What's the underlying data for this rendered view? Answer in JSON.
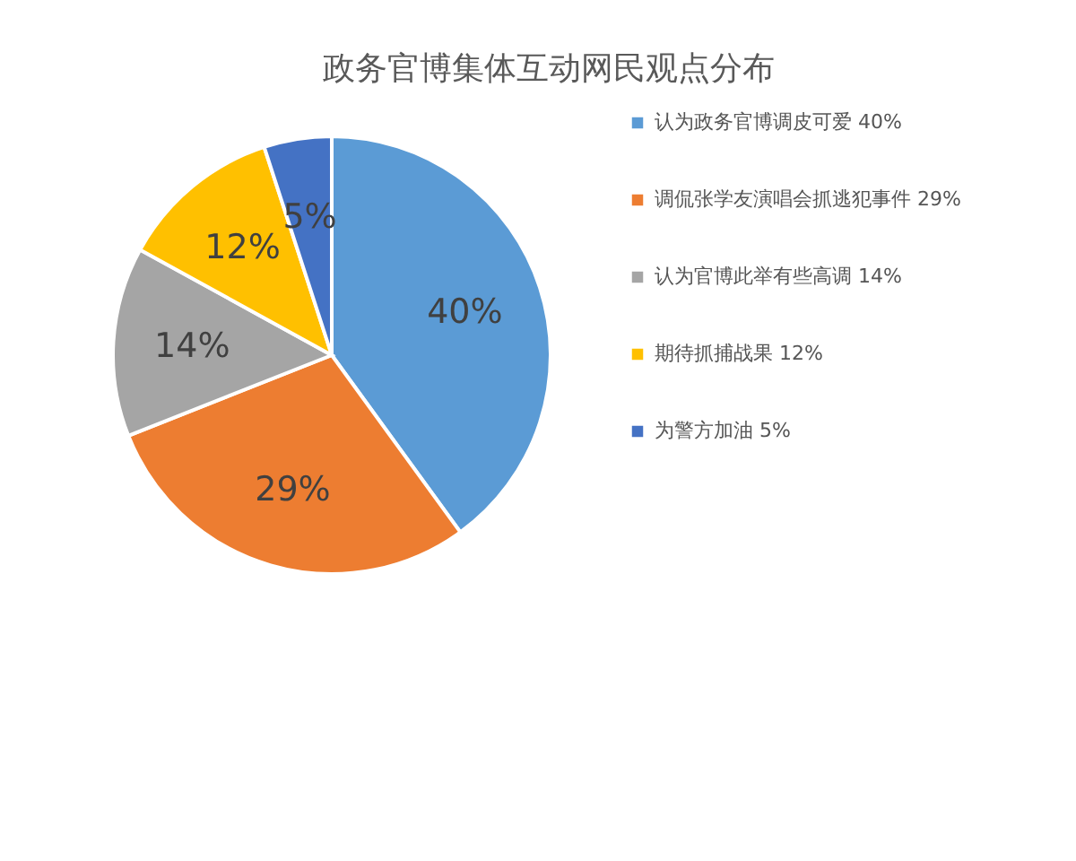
{
  "chart_data": {
    "type": "pie",
    "title": "政务官博集体互动网民观点分布",
    "categories": [
      "认为政务官博调皮可爱  40%",
      "调侃张学友演唱会抓逃犯事件  29%",
      "认为官博此举有些高调  14%",
      "期待抓捕战果  12%",
      "为警方加油  5%"
    ],
    "values": [
      40,
      29,
      14,
      12,
      5
    ],
    "value_labels": [
      "40%",
      "29%",
      "14%",
      "12%",
      "5%"
    ],
    "colors": [
      "#5b9bd5",
      "#ed7d31",
      "#a5a5a5",
      "#ffc000",
      "#4472c4"
    ],
    "legend": "right"
  }
}
